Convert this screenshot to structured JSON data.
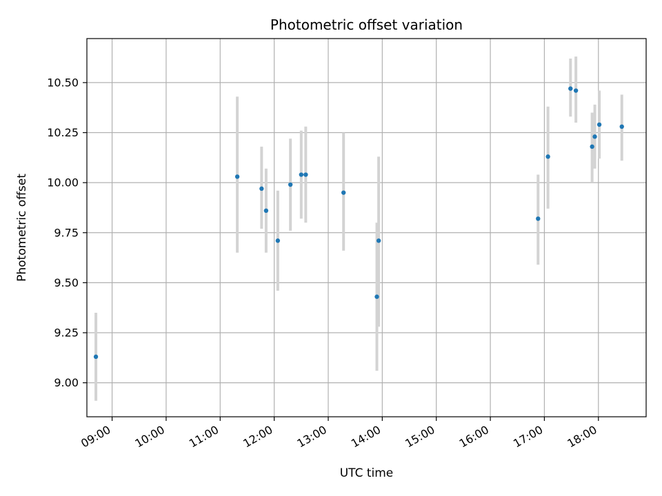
{
  "chart_data": {
    "type": "scatter",
    "title": "Photometric offset variation",
    "xlabel": "UTC time",
    "ylabel": "Photometric offset",
    "grid": true,
    "xlim": [
      "08:32",
      "18:53"
    ],
    "ylim": [
      8.83,
      10.72
    ],
    "x_ticks": [
      "09:00",
      "10:00",
      "11:00",
      "12:00",
      "13:00",
      "14:00",
      "15:00",
      "16:00",
      "17:00",
      "18:00"
    ],
    "y_ticks": [
      "9.00",
      "9.25",
      "9.50",
      "9.75",
      "10.00",
      "10.25",
      "10.50"
    ],
    "colors": {
      "point": "#1f77b4",
      "errorbar": "#d3d3d3",
      "grid": "#b0b0b0"
    },
    "points": [
      {
        "x": "08:42",
        "y": 9.13,
        "y_low": 8.91,
        "y_high": 9.35
      },
      {
        "x": "11:19",
        "y": 10.03,
        "y_low": 9.65,
        "y_high": 10.43
      },
      {
        "x": "11:46",
        "y": 9.97,
        "y_low": 9.77,
        "y_high": 10.18
      },
      {
        "x": "11:51",
        "y": 9.86,
        "y_low": 9.65,
        "y_high": 10.07
      },
      {
        "x": "12:04",
        "y": 9.71,
        "y_low": 9.46,
        "y_high": 9.96
      },
      {
        "x": "12:18",
        "y": 9.99,
        "y_low": 9.76,
        "y_high": 10.22
      },
      {
        "x": "12:30",
        "y": 10.04,
        "y_low": 9.82,
        "y_high": 10.26
      },
      {
        "x": "12:35",
        "y": 10.04,
        "y_low": 9.8,
        "y_high": 10.28
      },
      {
        "x": "13:17",
        "y": 9.95,
        "y_low": 9.66,
        "y_high": 10.25
      },
      {
        "x": "13:54",
        "y": 9.43,
        "y_low": 9.06,
        "y_high": 9.8
      },
      {
        "x": "13:56",
        "y": 9.71,
        "y_low": 9.28,
        "y_high": 10.13
      },
      {
        "x": "16:53",
        "y": 9.82,
        "y_low": 9.59,
        "y_high": 10.04
      },
      {
        "x": "17:04",
        "y": 10.13,
        "y_low": 9.87,
        "y_high": 10.38
      },
      {
        "x": "17:29",
        "y": 10.47,
        "y_low": 10.33,
        "y_high": 10.62
      },
      {
        "x": "17:35",
        "y": 10.46,
        "y_low": 10.3,
        "y_high": 10.63
      },
      {
        "x": "17:53",
        "y": 10.18,
        "y_low": 10.0,
        "y_high": 10.35
      },
      {
        "x": "17:56",
        "y": 10.23,
        "y_low": 10.07,
        "y_high": 10.39
      },
      {
        "x": "18:01",
        "y": 10.29,
        "y_low": 10.12,
        "y_high": 10.46
      },
      {
        "x": "18:26",
        "y": 10.28,
        "y_low": 10.11,
        "y_high": 10.44
      }
    ]
  }
}
